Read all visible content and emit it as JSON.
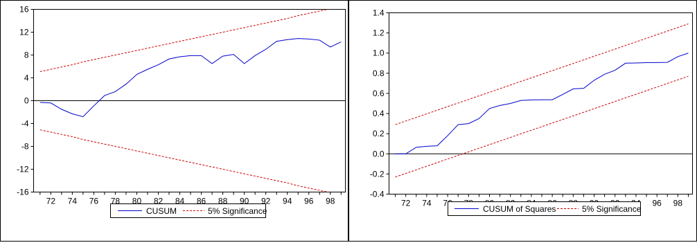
{
  "chart_data": [
    {
      "type": "line",
      "x": [
        71,
        72,
        73,
        74,
        75,
        76,
        77,
        78,
        79,
        80,
        81,
        82,
        83,
        84,
        85,
        86,
        87,
        88,
        89,
        90,
        91,
        92,
        93,
        94,
        95,
        96,
        97,
        98,
        99
      ],
      "series": [
        {
          "name": "CUSUM",
          "values": [
            -0.3,
            -0.4,
            -1.5,
            -2.3,
            -2.8,
            -0.9,
            0.9,
            1.6,
            2.9,
            4.6,
            5.5,
            6.3,
            7.3,
            7.7,
            7.9,
            7.9,
            6.5,
            7.8,
            8.1,
            6.5,
            7.9,
            9.0,
            10.4,
            10.7,
            10.9,
            10.8,
            10.6,
            9.4,
            10.3
          ],
          "color": "#0000cc"
        },
        {
          "name": "5% Significance",
          "values": [
            5.1,
            5.5,
            5.9,
            6.3,
            6.8,
            7.2,
            7.6,
            8.0,
            8.4,
            8.8,
            9.2,
            9.6,
            10.0,
            10.4,
            10.8,
            11.2,
            11.6,
            12.0,
            12.4,
            12.8,
            13.2,
            13.6,
            14.0,
            14.4,
            14.9,
            15.3,
            15.7,
            16.1,
            16.5
          ],
          "color": "#cc0000",
          "dashed": true
        },
        {
          "name": "",
          "values": [
            -5.1,
            -5.5,
            -5.9,
            -6.3,
            -6.8,
            -7.2,
            -7.6,
            -8.0,
            -8.4,
            -8.8,
            -9.2,
            -9.6,
            -10.0,
            -10.4,
            -10.8,
            -11.2,
            -11.6,
            -12.0,
            -12.4,
            -12.8,
            -13.2,
            -13.6,
            -14.0,
            -14.4,
            -14.9,
            -15.3,
            -15.7,
            -16.1,
            -16.5
          ],
          "color": "#cc0000",
          "dashed": true
        }
      ],
      "xlim": [
        70.4,
        99.4
      ],
      "xticks": [
        "72",
        "74",
        "76",
        "78",
        "80",
        "82",
        "84",
        "86",
        "88",
        "90",
        "92",
        "94",
        "96",
        "98"
      ],
      "ylim": [
        -16,
        16
      ],
      "yticks": [
        "16",
        "12",
        "8",
        "4",
        "0",
        "-4",
        "-8",
        "-12",
        "-16"
      ],
      "zero_line": true,
      "legend": {
        "placement": "bottom-center",
        "entries": [
          "CUSUM",
          "5% Significance"
        ]
      }
    },
    {
      "type": "line",
      "x": [
        71,
        72,
        73,
        74,
        75,
        76,
        77,
        78,
        79,
        80,
        81,
        82,
        83,
        84,
        85,
        86,
        87,
        88,
        89,
        90,
        91,
        92,
        93,
        94,
        95,
        96,
        97,
        98,
        99
      ],
      "series": [
        {
          "name": "CUSUM of Squares",
          "values": [
            0.0,
            0.0,
            0.065,
            0.075,
            0.08,
            0.18,
            0.29,
            0.3,
            0.35,
            0.45,
            0.48,
            0.5,
            0.53,
            0.535,
            0.537,
            0.537,
            0.59,
            0.645,
            0.65,
            0.73,
            0.79,
            0.83,
            0.9,
            0.902,
            0.905,
            0.906,
            0.908,
            0.965,
            1.0
          ],
          "color": "#0000cc"
        },
        {
          "name": "5% Significance",
          "values": [
            0.29,
            0.326,
            0.361,
            0.397,
            0.433,
            0.469,
            0.504,
            0.54,
            0.576,
            0.611,
            0.647,
            0.683,
            0.719,
            0.754,
            0.79,
            0.826,
            0.861,
            0.897,
            0.933,
            0.969,
            1.004,
            1.04,
            1.076,
            1.111,
            1.147,
            1.183,
            1.219,
            1.254,
            1.29
          ],
          "color": "#cc0000",
          "dashed": true
        },
        {
          "name": "",
          "values": [
            -0.23,
            -0.194,
            -0.159,
            -0.123,
            -0.087,
            -0.051,
            -0.016,
            0.02,
            0.056,
            0.091,
            0.127,
            0.163,
            0.199,
            0.234,
            0.27,
            0.306,
            0.341,
            0.377,
            0.413,
            0.449,
            0.484,
            0.52,
            0.556,
            0.591,
            0.627,
            0.663,
            0.699,
            0.734,
            0.77
          ],
          "color": "#cc0000",
          "dashed": true
        }
      ],
      "xlim": [
        70.4,
        99.4
      ],
      "xticks": [
        "72",
        "74",
        "76",
        "78",
        "80",
        "82",
        "84",
        "86",
        "88",
        "90",
        "92",
        "94",
        "96",
        "98"
      ],
      "ylim": [
        -0.4,
        1.4
      ],
      "yticks": [
        "1.4",
        "1.2",
        "1.0",
        "0.8",
        "0.6",
        "0.4",
        "0.2",
        "0.0",
        "-0.2",
        "-0.4"
      ],
      "zero_line": true,
      "legend": {
        "placement": "bottom-center",
        "entries": [
          "CUSUM of Squares",
          "5% Significance"
        ]
      }
    }
  ]
}
